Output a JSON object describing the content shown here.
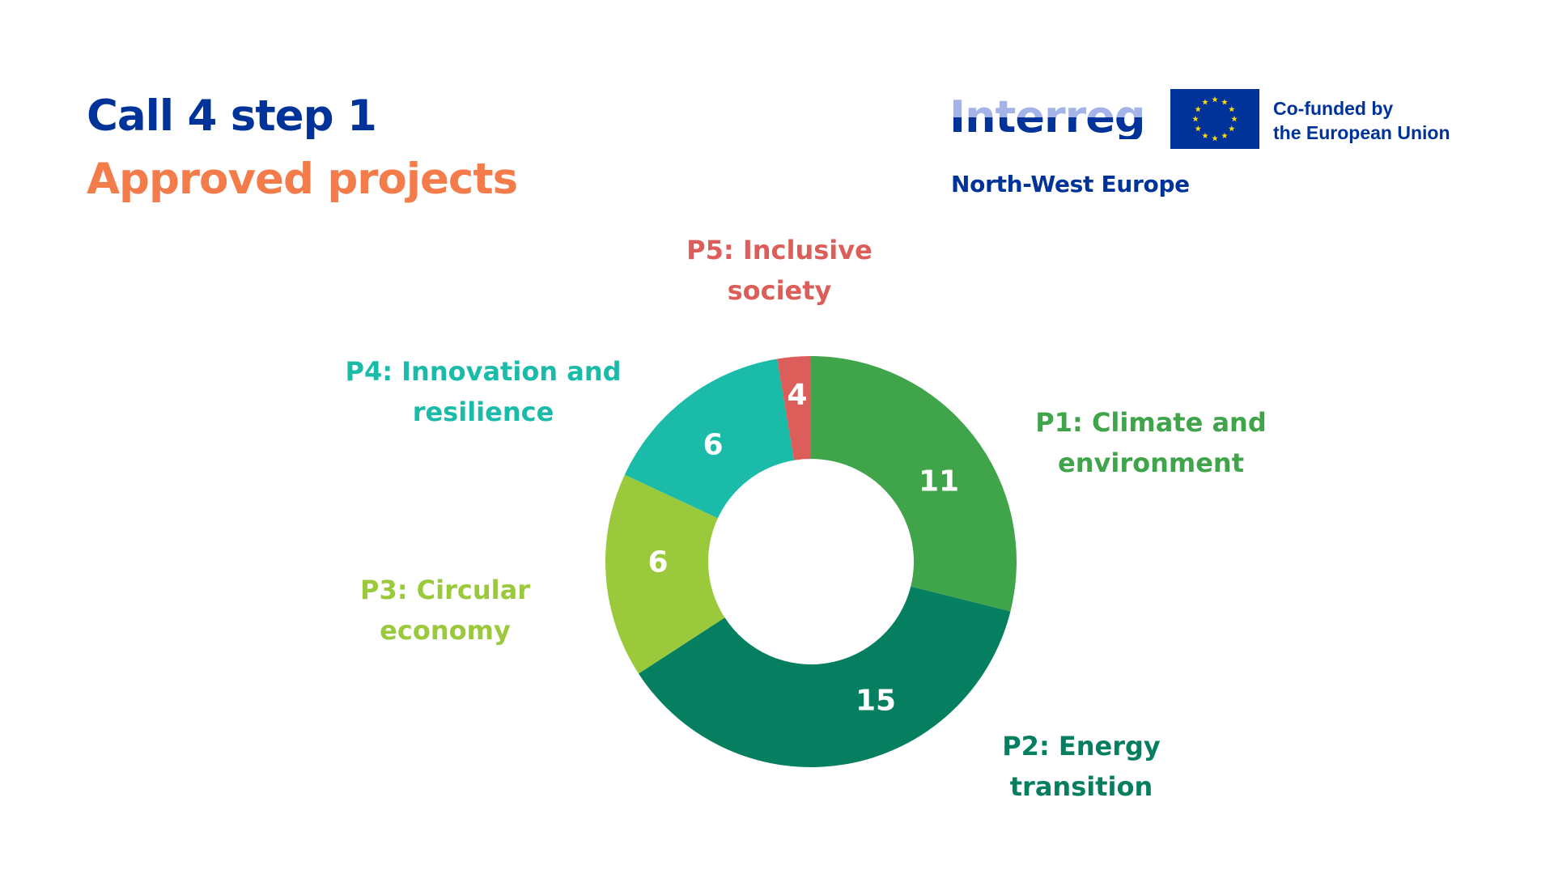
{
  "header": {
    "title_line1": "Call 4 step 1",
    "title_line2": "Approved projects",
    "colors": {
      "title_line1": "#003399",
      "title_line2": "#F47B4A"
    }
  },
  "logos": {
    "programme_name": "Interreg",
    "programme_region": "North-West Europe",
    "eu_line1": "Co-funded by",
    "eu_line2": "the European Union",
    "eu_flag_icon": "eu-flag-icon",
    "colors": {
      "interreg_top": "#A4B3E8",
      "interreg_bottom": "#003399",
      "eu_blue": "#003399",
      "eu_star": "#FFDD00"
    }
  },
  "chart_data": {
    "type": "pie",
    "variant": "donut",
    "title": "Call 4 step 1 — Approved projects",
    "categories": [
      "P1: Climate and environment",
      "P2: Energy transition",
      "P3: Circular economy",
      "P4: Innovation and resilience",
      "P5: Inclusive society"
    ],
    "values": [
      11,
      15,
      6,
      6,
      4
    ],
    "colors": [
      "#40A44A",
      "#067F60",
      "#9BC93C",
      "#1ABBA8",
      "#DB5E5A"
    ],
    "label_lines": [
      [
        "P1: Climate and",
        "environment"
      ],
      [
        "P2: Energy",
        "transition"
      ],
      [
        "P3: Circular",
        "economy"
      ],
      [
        "P4: Innovation and",
        "resilience"
      ],
      [
        "P5: Inclusive",
        "society"
      ]
    ],
    "legend": "none (labels placed next to slices)",
    "data_labels": "inside slices, white"
  }
}
